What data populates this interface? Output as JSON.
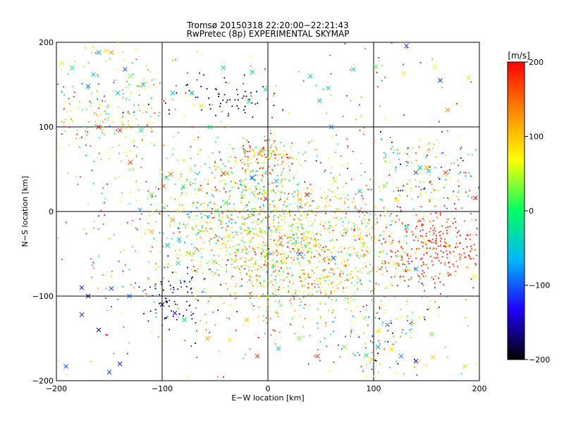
{
  "chart_data": {
    "type": "scatter",
    "title": "Tromsø 20150318 22:20:00−22:21:43",
    "subtitle": "RwPretec (8p) EXPERIMENTAL SKYMAP",
    "xlabel": "E−W location [km]",
    "ylabel": "N−S location [km]",
    "xlim": [
      -200,
      200
    ],
    "ylim": [
      -200,
      200
    ],
    "xticks": [
      -200,
      -100,
      0,
      100,
      200
    ],
    "yticks": [
      -200,
      -100,
      0,
      100,
      200
    ],
    "xtick_labels": [
      "−200",
      "−100",
      "0",
      "100",
      "200"
    ],
    "ytick_labels": [
      "−200",
      "−100",
      "0",
      "100",
      "200"
    ],
    "grid": true,
    "colorbar": {
      "label": "[m/s]",
      "range": [
        -200,
        200
      ],
      "ticks": [
        200,
        100,
        0,
        -100,
        -200
      ],
      "tick_labels": [
        "200",
        "100",
        "0",
        "−100",
        "−200"
      ],
      "colors": [
        "#000000",
        "#2000ff",
        "#00b4ff",
        "#00ff64",
        "#ffff00",
        "#ff8c00",
        "#ff0000"
      ]
    },
    "series": [
      {
        "marker": "x",
        "points": [
          [
            -195,
            175
          ],
          [
            -185,
            170
          ],
          [
            -160,
            188
          ],
          [
            -153,
            190
          ],
          [
            -148,
            188
          ],
          [
            -135,
            168
          ],
          [
            -130,
            160
          ],
          [
            -165,
            162
          ],
          [
            -170,
            148
          ],
          [
            -142,
            140
          ],
          [
            -118,
            150
          ],
          [
            -90,
            140
          ],
          [
            -72,
            140
          ],
          [
            -63,
            125
          ],
          [
            -55,
            100
          ],
          [
            -42,
            170
          ],
          [
            -15,
            165
          ],
          [
            -18,
            130
          ],
          [
            -2,
            144
          ],
          [
            40,
            160
          ],
          [
            57,
            146
          ],
          [
            49,
            131
          ],
          [
            60,
            100
          ],
          [
            81,
            168
          ],
          [
            102,
            171
          ],
          [
            128,
            163
          ],
          [
            131,
            196
          ],
          [
            158,
            171
          ],
          [
            163,
            155
          ],
          [
            170,
            120
          ],
          [
            190,
            158
          ],
          [
            -160,
            100
          ],
          [
            -140,
            96
          ],
          [
            -120,
            96
          ],
          [
            -96,
            40
          ],
          [
            -92,
            44
          ],
          [
            -99,
            30
          ],
          [
            -110,
            20
          ],
          [
            -64,
            26
          ],
          [
            -40,
            10
          ],
          [
            -42,
            45
          ],
          [
            -24,
            18
          ],
          [
            -15,
            40
          ],
          [
            -8,
            68
          ],
          [
            -5,
            72
          ],
          [
            -3,
            22
          ],
          [
            -2,
            15
          ],
          [
            3,
            24
          ],
          [
            8,
            36
          ],
          [
            30,
            14
          ],
          [
            37,
            20
          ],
          [
            63,
            36
          ],
          [
            87,
            24
          ],
          [
            110,
            30
          ],
          [
            121,
            14
          ],
          [
            131,
            -19
          ],
          [
            140,
            46
          ],
          [
            144,
            52
          ],
          [
            150,
            52
          ],
          [
            152,
            48
          ],
          [
            168,
            46
          ],
          [
            196,
            16
          ],
          [
            -130,
            58
          ],
          [
            -80,
            30
          ],
          [
            -121,
            2
          ],
          [
            -90,
            -10
          ],
          [
            -110,
            -24
          ],
          [
            -95,
            -40
          ],
          [
            -84,
            -33
          ],
          [
            -76,
            -50
          ],
          [
            -85,
            -61
          ],
          [
            -51,
            -59
          ],
          [
            -37,
            -29
          ],
          [
            -18,
            -24
          ],
          [
            -6,
            -24
          ],
          [
            12,
            -31
          ],
          [
            30,
            -50
          ],
          [
            62,
            -55
          ],
          [
            90,
            -40
          ],
          [
            120,
            -62
          ],
          [
            140,
            -68
          ],
          [
            170,
            -41
          ],
          [
            195,
            -77
          ],
          [
            -148,
            -91
          ],
          [
            -131,
            -100
          ],
          [
            -100,
            -110
          ],
          [
            -88,
            -120
          ],
          [
            -79,
            -128
          ],
          [
            -57,
            -150
          ],
          [
            -36,
            -152
          ],
          [
            -20,
            -128
          ],
          [
            -10,
            -171
          ],
          [
            10,
            -162
          ],
          [
            30,
            -150
          ],
          [
            47,
            -171
          ],
          [
            72,
            -160
          ],
          [
            93,
            -170
          ],
          [
            98,
            -175
          ],
          [
            104,
            -160
          ],
          [
            105,
            -141
          ],
          [
            113,
            -134
          ],
          [
            117,
            -163
          ],
          [
            126,
            -171
          ],
          [
            140,
            -177
          ],
          [
            155,
            -145
          ],
          [
            156,
            -172
          ],
          [
            186,
            -183
          ],
          [
            -176,
            -90
          ],
          [
            -170,
            -100
          ],
          [
            -176,
            -122
          ],
          [
            -160,
            -140
          ],
          [
            -191,
            -183
          ],
          [
            -140,
            -180
          ],
          [
            -150,
            -190
          ]
        ]
      },
      {
        "marker": "dot",
        "count": 3200,
        "regions": [
          {
            "cx": 30,
            "cy": -50,
            "sx": 55,
            "sy": 40,
            "v": 80,
            "vs": 60,
            "w": 0.34
          },
          {
            "cx": -30,
            "cy": 10,
            "sx": 45,
            "sy": 35,
            "v": 10,
            "vs": 70,
            "w": 0.14
          },
          {
            "cx": 155,
            "cy": -40,
            "sx": 30,
            "sy": 25,
            "v": 185,
            "vs": 20,
            "w": 0.08
          },
          {
            "cx": -155,
            "cy": 115,
            "sx": 35,
            "sy": 35,
            "v": 60,
            "vs": 80,
            "w": 0.07
          },
          {
            "cx": -5,
            "cy": 65,
            "sx": 18,
            "sy": 12,
            "v": 120,
            "vs": 80,
            "w": 0.04
          },
          {
            "cx": -88,
            "cy": -100,
            "sx": 18,
            "sy": 22,
            "v": -150,
            "vs": 60,
            "w": 0.03
          },
          {
            "cx": 110,
            "cy": -140,
            "sx": 30,
            "sy": 30,
            "v": 0,
            "vs": 130,
            "w": 0.05
          },
          {
            "cx": 150,
            "cy": 45,
            "sx": 30,
            "sy": 25,
            "v": 20,
            "vs": 120,
            "w": 0.05
          },
          {
            "cx": -45,
            "cy": 135,
            "sx": 25,
            "sy": 15,
            "v": -190,
            "vs": 30,
            "w": 0.02
          },
          {
            "cx": 0,
            "cy": 0,
            "sx": 120,
            "sy": 120,
            "v": 120,
            "vs": 90,
            "w": 0.18
          }
        ]
      }
    ]
  }
}
